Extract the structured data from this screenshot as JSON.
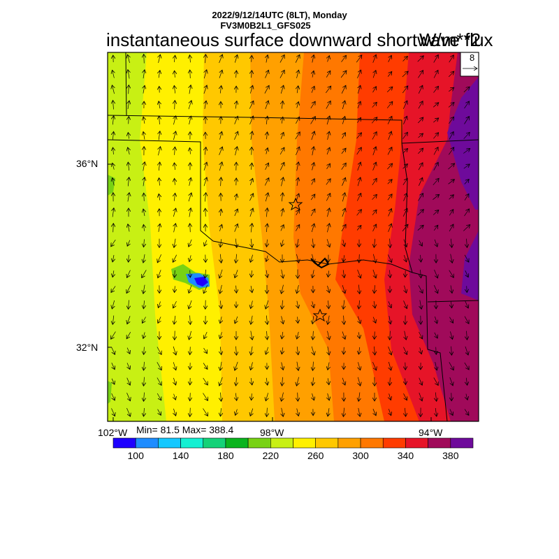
{
  "header": {
    "datetime_line": "2022/9/12/14UTC (8LT), Monday",
    "model_line": "FV3M0B2L1_GFS025",
    "title": "instantaneous surface downward shortwave flux",
    "units": "W/m**2"
  },
  "vector_reference": {
    "value": "8"
  },
  "axes": {
    "lat_labels": [
      "36°N",
      "32°N"
    ],
    "lon_labels": [
      "102°W",
      "98°W",
      "94°W"
    ]
  },
  "stats": {
    "text": "Min= 81.5 Max= 388.4"
  },
  "colorbar": {
    "colors": [
      "#1e00ff",
      "#1e8cff",
      "#14c8ff",
      "#14f0d2",
      "#14d278",
      "#0ab41e",
      "#78d214",
      "#c8f014",
      "#fff000",
      "#ffc800",
      "#ffa000",
      "#ff7800",
      "#ff3c00",
      "#e61428",
      "#a00a5a",
      "#6e0a9b"
    ],
    "tick_labels": [
      "100",
      "140",
      "180",
      "220",
      "260",
      "300",
      "340",
      "380"
    ]
  },
  "field_colors": {
    "lime": "#c8f014",
    "yellow": "#fff000",
    "gold": "#ffc800",
    "orange": "#ffa000",
    "dark_orange": "#ff7800",
    "red_orange": "#ff3c00",
    "crimson": "#e61428",
    "maroon": "#a00a5a",
    "purple": "#6e0a9b",
    "green": "#78d214",
    "blue": "#1e00ff"
  }
}
